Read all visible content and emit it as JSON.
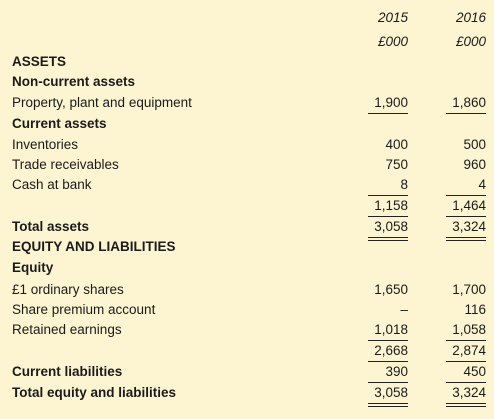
{
  "header": {
    "years": [
      "2015",
      "2016"
    ],
    "units": [
      "£000",
      "£000"
    ]
  },
  "rows": [
    {
      "label": "ASSETS"
    },
    {
      "label": "Non-current assets"
    },
    {
      "label": "Property, plant and equipment",
      "values": [
        "1,900",
        "1,860"
      ]
    },
    {
      "label": "Current assets"
    },
    {
      "label": "Inventories",
      "values": [
        "400",
        "500"
      ]
    },
    {
      "label": "Trade receivables",
      "values": [
        "750",
        "960"
      ]
    },
    {
      "label": "Cash at bank",
      "values": [
        "8",
        "4"
      ]
    },
    {
      "values": [
        "1,158",
        "1,464"
      ]
    },
    {
      "label": "Total assets",
      "values": [
        "3,058",
        "3,324"
      ]
    },
    {
      "label": "EQUITY AND LIABILITIES"
    },
    {
      "label": "Equity"
    },
    {
      "label": "£1 ordinary shares",
      "values": [
        "1,650",
        "1,700"
      ]
    },
    {
      "label": "Share premium account",
      "values": [
        "–",
        "116"
      ]
    },
    {
      "label": "Retained earnings",
      "values": [
        "1,018",
        "1,058"
      ]
    },
    {
      "values": [
        "2,668",
        "2,874"
      ]
    },
    {
      "label": "Current liabilities",
      "values": [
        "390",
        "450"
      ]
    },
    {
      "label": "Total equity and liabilities",
      "values": [
        "3,058",
        "3,324"
      ]
    }
  ]
}
